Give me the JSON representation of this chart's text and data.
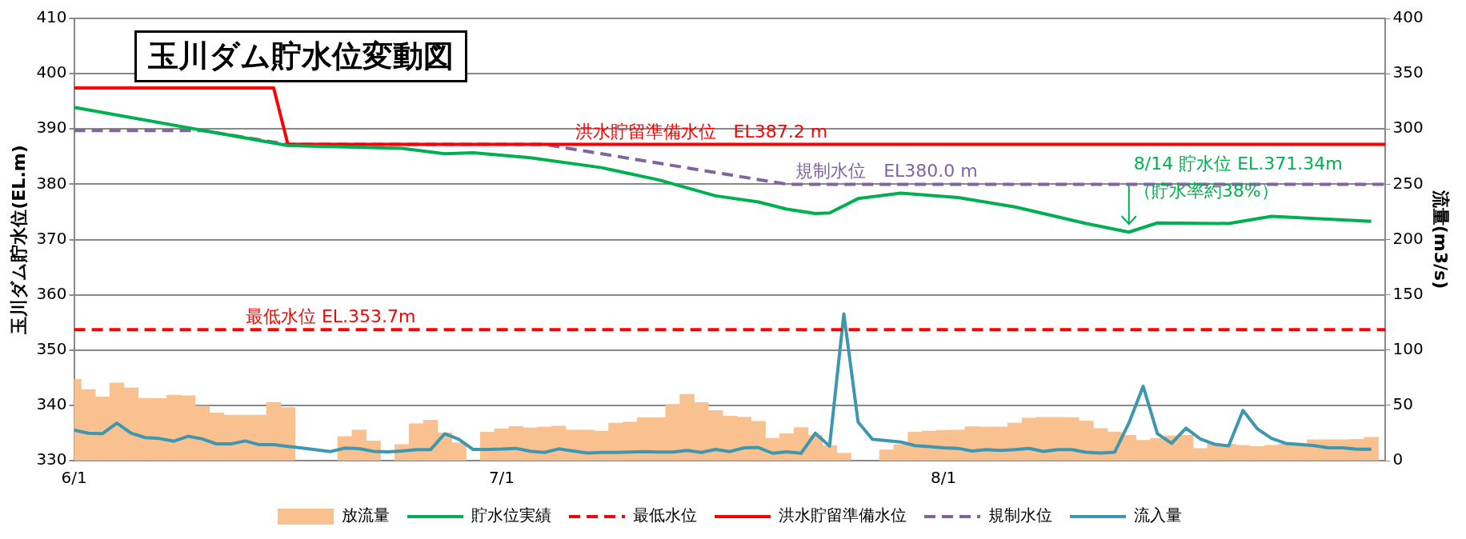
{
  "chart_data": {
    "type": "line",
    "title": "玉川ダム貯水位変動図",
    "ylabel": "玉川ダム貯水位(EL.m)",
    "y2label": "流量(m3/s)",
    "x": [
      "--06-01",
      "--06-02",
      "--06-03",
      "--06-04",
      "--06-05",
      "--06-06",
      "--06-07",
      "--06-08",
      "--06-09",
      "--06-10",
      "--06-11",
      "--06-12",
      "--06-13",
      "--06-14",
      "--06-15",
      "--06-16",
      "--06-17",
      "--06-18",
      "--06-19",
      "--06-20",
      "--06-21",
      "--06-22",
      "--06-23",
      "--06-24",
      "--06-25",
      "--06-26",
      "--06-27",
      "--06-28",
      "--06-29",
      "--06-30",
      "--07-01",
      "--07-02",
      "--07-03",
      "--07-04",
      "--07-05",
      "--07-06",
      "--07-07",
      "--07-08",
      "--07-09",
      "--07-10",
      "--07-11",
      "--07-12",
      "--07-13",
      "--07-14",
      "--07-15",
      "--07-16",
      "--07-17",
      "--07-18",
      "--07-19",
      "--07-20",
      "--07-21",
      "--07-22",
      "--07-23",
      "--07-24",
      "--07-25",
      "--07-26",
      "--07-27",
      "--07-28",
      "--07-29",
      "--07-30",
      "--07-31",
      "--08-01",
      "--08-02",
      "--08-03",
      "--08-04",
      "--08-05",
      "--08-06",
      "--08-07",
      "--08-08",
      "--08-09",
      "--08-10",
      "--08-11",
      "--08-12",
      "--08-13",
      "--08-14",
      "--08-15",
      "--08-16",
      "--08-17",
      "--08-18",
      "--08-19",
      "--08-20",
      "--08-21",
      "--08-22",
      "--08-23",
      "--08-24",
      "--08-25",
      "--08-26",
      "--08-27",
      "--08-28",
      "--08-29",
      "--08-30",
      "--08-31"
    ],
    "series": [
      {
        "name": "放流量",
        "type": "bar",
        "axis": "y2",
        "color": "#f8c18f",
        "values": [
          73.5,
          64.4,
          57.7,
          70.3,
          65.8,
          56.4,
          56.2,
          59.2,
          58.7,
          49.3,
          43.1,
          41.1,
          41.1,
          41.1,
          52.7,
          48.0,
          null,
          null,
          null,
          21.8,
          27.7,
          17.8,
          null,
          14.6,
          33.4,
          36.6,
          25.2,
          16.1,
          null,
          25.7,
          28.7,
          31.0,
          29.7,
          30.4,
          31.2,
          27.7,
          27.7,
          26.7,
          33.9,
          34.9,
          38.9,
          38.9,
          51.0,
          59.9,
          52.5,
          45.3,
          40.3,
          39.4,
          35.6,
          20.3,
          24.3,
          29.9,
          22.8,
          13.6,
          6.7,
          null,
          null,
          9.7,
          14.6,
          25.7,
          26.7,
          27.5,
          27.7,
          30.7,
          30.5,
          30.5,
          34.0,
          38.5,
          39.2,
          39.2,
          39.0,
          35.8,
          29.1,
          25.9,
          22.9,
          18.4,
          20.2,
          22.5,
          22.9,
          11.0,
          15.6,
          14.9,
          13.8,
          12.8,
          13.8,
          15.0,
          15.0,
          19.0,
          19.0,
          19.0,
          19.3,
          21.1
        ]
      },
      {
        "name": "貯水位実績",
        "color": "#00b050",
        "x": [
          "--06-01",
          "--06-16",
          "--06-24",
          "--06-27",
          "--06-29",
          "--07-03",
          "--07-08",
          "--07-12",
          "--07-16",
          "--07-19",
          "--07-21",
          "--07-23",
          "--07-24",
          "--07-26",
          "--07-29",
          "--08-02",
          "--08-06",
          "--08-11",
          "--08-14",
          "--08-16",
          "--08-21",
          "--08-24",
          "--08-31"
        ],
        "values": [
          393.9,
          387.0,
          386.5,
          385.5,
          385.7,
          384.8,
          383.0,
          380.8,
          377.9,
          376.8,
          375.5,
          374.7,
          374.8,
          377.4,
          378.4,
          377.6,
          375.9,
          372.9,
          371.34,
          373.0,
          372.9,
          374.2,
          373.3
        ]
      },
      {
        "name": "最低水位",
        "line_style": "dashed",
        "color": "#ff0000",
        "x": [
          "--06-01",
          "--09-01"
        ],
        "values": [
          353.7,
          353.7
        ]
      },
      {
        "name": "洪水貯留準備水位",
        "color": "#ff0000",
        "x": [
          "--06-01",
          "--06-15",
          "--06-16",
          "--09-01"
        ],
        "values": [
          397.4,
          397.4,
          387.2,
          387.2
        ]
      },
      {
        "name": "規制水位",
        "line_style": "dashed",
        "color": "#8064a2",
        "x": [
          "--06-01",
          "--06-10",
          "--06-16",
          "--07-04",
          "--07-21",
          "--09-01"
        ],
        "values": [
          389.7,
          389.7,
          387.2,
          387.2,
          380.0,
          380.0
        ]
      },
      {
        "name": "流入量",
        "axis": "y2",
        "color": "#3e97b0",
        "values": [
          27.7,
          24.8,
          24.5,
          33.9,
          24.8,
          20.8,
          20.0,
          17.6,
          22.0,
          19.6,
          15.1,
          15.1,
          17.8,
          14.4,
          14.4,
          12.9,
          11.4,
          9.7,
          8.2,
          11.4,
          10.9,
          8.4,
          7.9,
          8.7,
          9.9,
          9.9,
          24.3,
          19.3,
          10.1,
          10.1,
          10.4,
          11.1,
          8.5,
          7.4,
          10.6,
          8.7,
          6.9,
          7.4,
          7.4,
          7.7,
          8.2,
          7.7,
          7.7,
          9.2,
          7.4,
          10.1,
          8.2,
          11.6,
          11.9,
          6.7,
          7.9,
          6.7,
          24.8,
          13.1,
          132.7,
          34.9,
          19.3,
          18.1,
          16.8,
          13.6,
          12.6,
          11.6,
          11.1,
          8.7,
          9.9,
          9.2,
          10.0,
          11.0,
          8.3,
          9.9,
          9.9,
          7.6,
          6.9,
          7.6,
          34.0,
          67.2,
          24.3,
          15.6,
          29.4,
          19.7,
          14.9,
          13.3,
          45.4,
          28.9,
          20.2,
          15.6,
          14.7,
          13.5,
          11.5,
          11.5,
          10.3,
          10.3
        ]
      }
    ],
    "xlim": [
      "--06-01",
      "--09-01"
    ],
    "xticks": [
      {
        "value": "--06-01",
        "label": "6/1"
      },
      {
        "value": "--07-01",
        "label": "7/1"
      },
      {
        "value": "--08-01",
        "label": "8/1"
      }
    ],
    "ylim": [
      330,
      410
    ],
    "yticks": [
      330,
      340,
      350,
      360,
      370,
      380,
      390,
      400,
      410
    ],
    "y2lim": [
      0,
      400
    ],
    "y2ticks": [
      0,
      50,
      100,
      150,
      200,
      250,
      300,
      350,
      400
    ],
    "annotations": [
      {
        "text": "洪水貯留準備水位　EL387.2 m",
        "x": "--07-15",
        "y": 387.2
      },
      {
        "text": "規制水位　EL380.0 m",
        "x": "--07-28",
        "y": 380.0
      },
      {
        "text": "最低水位 EL.353.7m",
        "x": "--06-19",
        "y": 353.7
      },
      {
        "text": "8/14 貯水位 EL.371.34m\n（貯水率約38%）",
        "x": "--08-14",
        "y": 371.34
      }
    ],
    "grid": "y",
    "legend": "bottom",
    "marker": "none"
  }
}
